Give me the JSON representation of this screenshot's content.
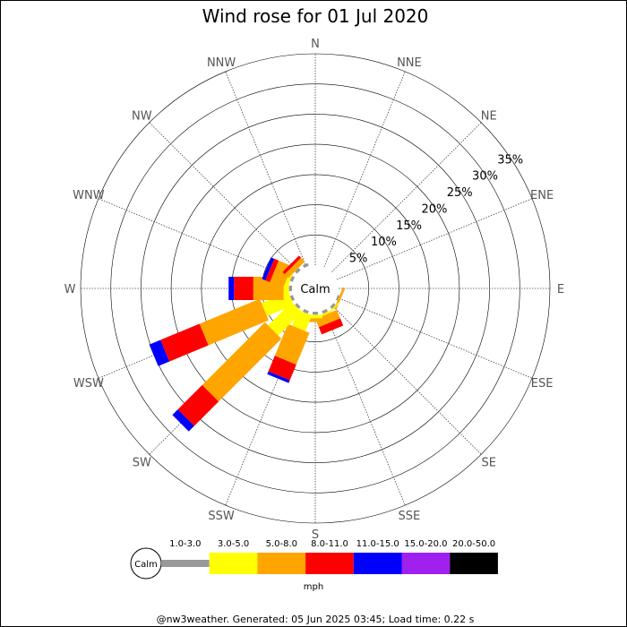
{
  "footer": "@nw3weather. Generated: 05 Jun 2025 03:45; Load time: 0.22 s",
  "chart_data": {
    "type": "windrose",
    "title": "Wind rose for 01 Jul 2020",
    "center_label": "Calm",
    "directions": [
      "N",
      "NNE",
      "NE",
      "ENE",
      "E",
      "ESE",
      "SE",
      "SSE",
      "S",
      "SSW",
      "SW",
      "WSW",
      "W",
      "WNW",
      "NW",
      "NNW"
    ],
    "ring_labels": [
      "5%",
      "10%",
      "15%",
      "20%",
      "25%",
      "30%",
      "35%"
    ],
    "ring_values": [
      5,
      10,
      15,
      20,
      25,
      30,
      35
    ],
    "radial_max": 35,
    "unit": "mph",
    "speed_bins": [
      {
        "label": "1.0-3.0",
        "color": "#999999"
      },
      {
        "label": "3.0-5.0",
        "color": "#ffff00"
      },
      {
        "label": "5.0-8.0",
        "color": "#ffa500"
      },
      {
        "label": "8.0-11.0",
        "color": "#ff0000"
      },
      {
        "label": "11.0-15.0",
        "color": "#0000ff"
      },
      {
        "label": "15.0-20.0",
        "color": "#a020f0"
      },
      {
        "label": "20.0-50.0",
        "color": "#000000"
      }
    ],
    "frequencies_percent": [
      [
        0,
        0,
        0,
        0,
        0,
        0,
        0
      ],
      [
        0,
        0,
        0,
        0,
        0,
        0,
        0
      ],
      [
        0,
        0,
        0,
        0,
        0,
        0,
        0
      ],
      [
        0,
        0,
        0,
        0,
        0,
        0,
        0
      ],
      [
        0,
        0,
        0,
        0,
        0,
        0,
        0
      ],
      [
        0.3,
        0,
        0.4,
        0,
        0,
        0,
        0
      ],
      [
        0.5,
        0.2,
        0,
        0,
        0,
        0,
        0
      ],
      [
        0.5,
        0.3,
        1.5,
        1.3,
        0,
        0,
        0
      ],
      [
        0.5,
        0.6,
        0.6,
        0,
        0,
        0,
        0
      ],
      [
        0.5,
        2.8,
        5.7,
        2.8,
        0.5,
        0,
        0
      ],
      [
        0.5,
        5.5,
        14.7,
        5.7,
        1.3,
        0,
        0
      ],
      [
        0.5,
        4.8,
        10.8,
        7.0,
        2.0,
        0,
        0
      ],
      [
        0.5,
        0.9,
        5.0,
        3.2,
        0.9,
        0,
        0
      ],
      [
        0.5,
        0.6,
        2.4,
        0.8,
        0.6,
        0,
        0
      ],
      [
        0.5,
        0,
        0.9,
        0.5,
        0,
        0,
        0
      ],
      [
        0.5,
        0,
        0,
        0,
        0,
        0,
        0
      ]
    ]
  }
}
